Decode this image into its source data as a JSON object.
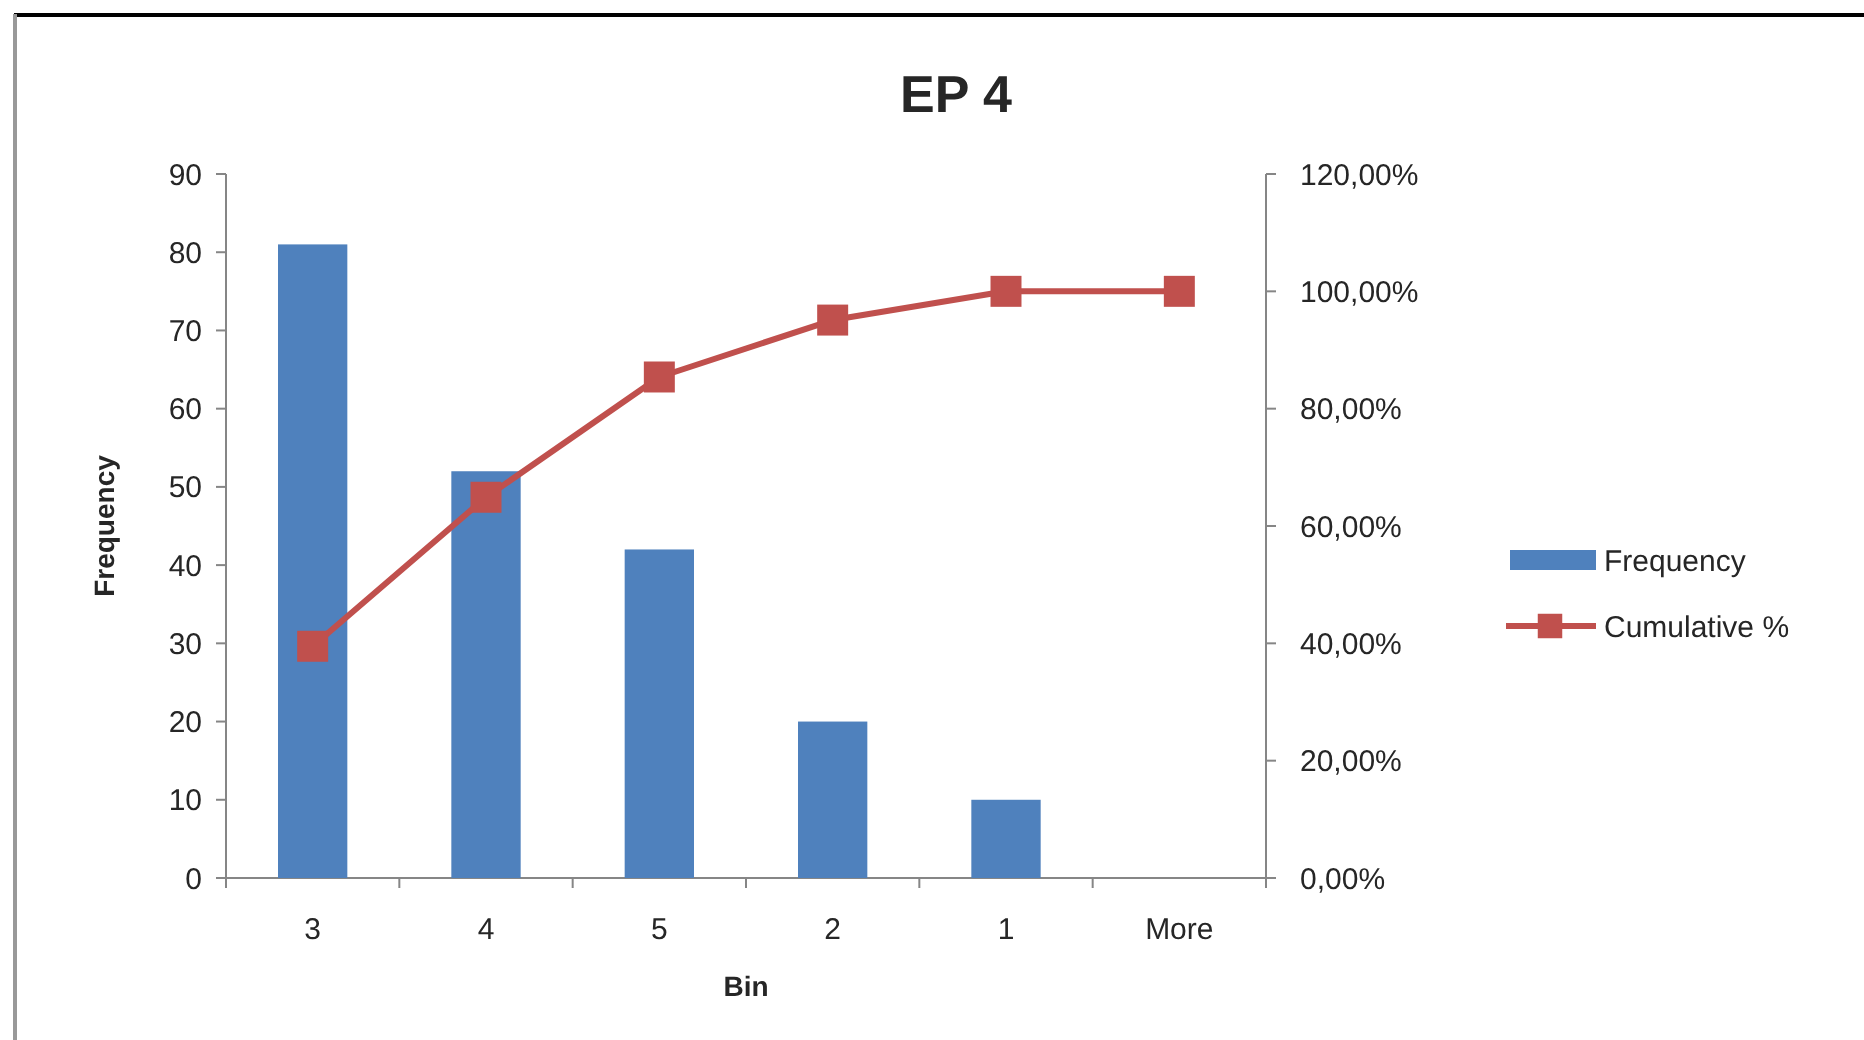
{
  "chart_data": {
    "type": "bar",
    "title": "EP 4",
    "xlabel": "Bin",
    "ylabel": "Frequency",
    "categories": [
      "3",
      "4",
      "5",
      "2",
      "1",
      "More"
    ],
    "series": [
      {
        "name": "Frequency",
        "color": "#4f81bd",
        "values": [
          81,
          52,
          42,
          20,
          10,
          0
        ]
      },
      {
        "name": "Cumulative %",
        "type": "line",
        "axis": "y2",
        "color": "#c0504d",
        "values": [
          39.5,
          64.9,
          85.4,
          95.1,
          100,
          100
        ]
      }
    ],
    "ylim": [
      0,
      90
    ],
    "yticks": [
      0,
      10,
      20,
      30,
      40,
      50,
      60,
      70,
      80,
      90
    ],
    "y2lim": [
      0,
      120
    ],
    "y2ticks": [
      {
        "value": 0,
        "label": "0,00%"
      },
      {
        "value": 20,
        "label": "20,00%"
      },
      {
        "value": 40,
        "label": "40,00%"
      },
      {
        "value": 60,
        "label": "60,00%"
      },
      {
        "value": 80,
        "label": "80,00%"
      },
      {
        "value": 100,
        "label": "100,00%"
      },
      {
        "value": 120,
        "label": "120,00%"
      }
    ],
    "marker": "square",
    "legend": "right"
  }
}
